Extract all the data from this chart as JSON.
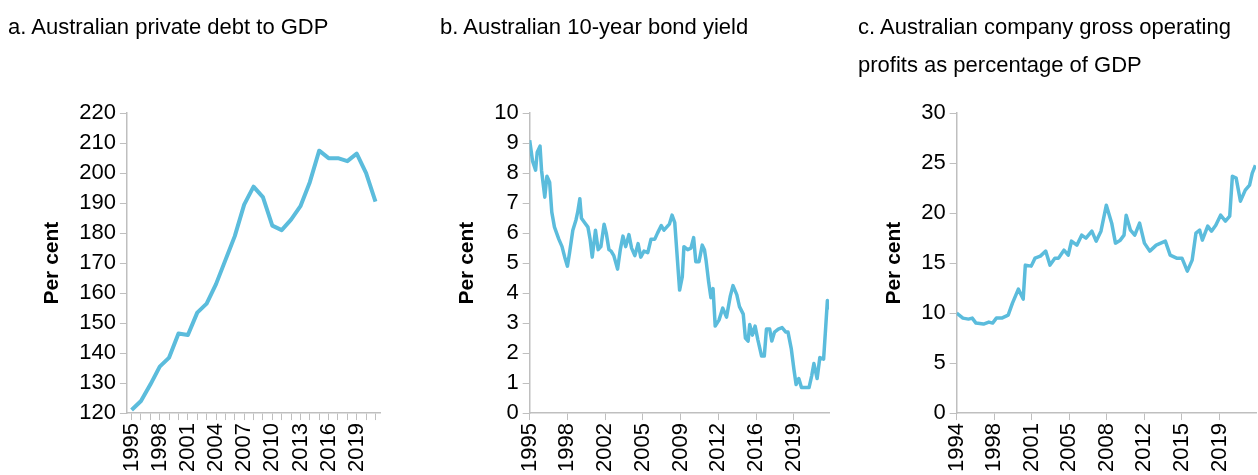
{
  "chart_data": [
    {
      "type": "line",
      "title": "a. Australian private debt to GDP",
      "ylabel": "Per cent",
      "categories": [
        "1995",
        null,
        null,
        "1998",
        null,
        null,
        "2001",
        null,
        null,
        "2004",
        null,
        null,
        "2007",
        null,
        null,
        "2010",
        null,
        null,
        "2013",
        null,
        null,
        "2016",
        null,
        null,
        "2019",
        null,
        null
      ],
      "series": [
        {
          "color": "#5bbcdc",
          "values": [
            121,
            124,
            129.5,
            135.5,
            138.5,
            146.5,
            146,
            153.5,
            156.5,
            163,
            171,
            179,
            189.5,
            195.5,
            192,
            182.5,
            181,
            184.5,
            189,
            197,
            207.5,
            205,
            205,
            204,
            206.5,
            200,
            190.5
          ]
        }
      ],
      "ylim": [
        120,
        220
      ],
      "yticks": [
        120,
        130,
        140,
        150,
        160,
        170,
        180,
        190,
        200,
        210,
        220
      ]
    },
    {
      "type": "line",
      "title": "b. Australian 10-year bond yield",
      "ylabel": "Per cent",
      "x": [
        1995.0,
        1995.27,
        1995.55,
        1995.7,
        1995.96,
        1996.1,
        1996.4,
        1996.6,
        1996.85,
        1997.05,
        1997.3,
        1997.7,
        1998.0,
        1998.25,
        1998.5,
        1998.7,
        1999.0,
        1999.3,
        1999.45,
        1999.65,
        1999.8,
        2000.1,
        2000.4,
        2000.6,
        2000.8,
        2001.1,
        2001.35,
        2001.6,
        2001.9,
        2002.1,
        2002.35,
        2002.55,
        2002.8,
        2003.15,
        2003.4,
        2003.65,
        2003.9,
        2004.2,
        2004.45,
        2004.75,
        2005.05,
        2005.3,
        2005.6,
        2005.95,
        2006.25,
        2006.6,
        2006.85,
        2007.2,
        2007.45,
        2007.95,
        2008.2,
        2008.45,
        2008.7,
        2008.9,
        2009.15,
        2009.3,
        2009.65,
        2009.95,
        2010.2,
        2010.4,
        2010.7,
        2011.0,
        2011.2,
        2011.35,
        2011.6,
        2011.8,
        2012.0,
        2012.2,
        2012.55,
        2012.9,
        2013.25,
        2013.6,
        2013.85,
        2014.2,
        2014.45,
        2014.8,
        2015.0,
        2015.25,
        2015.4,
        2015.65,
        2015.9,
        2016.15,
        2016.5,
        2016.75,
        2016.95,
        2017.25,
        2017.45,
        2017.7,
        2018.05,
        2018.4,
        2018.75,
        2018.95,
        2019.25,
        2019.5,
        2019.7,
        2019.95,
        2020.2,
        2020.55,
        2020.9,
        2021.15,
        2021.35,
        2021.65,
        2021.9,
        2022.25,
        2022.45,
        2022.6,
        2022.75
      ],
      "series": [
        {
          "color": "#5bbcdc",
          "values": [
            9.1,
            8.4,
            8.1,
            8.7,
            8.9,
            8.1,
            7.2,
            7.9,
            7.7,
            6.7,
            6.2,
            5.8,
            5.55,
            5.2,
            4.9,
            5.35,
            6.1,
            6.45,
            6.7,
            7.15,
            6.5,
            6.35,
            6.2,
            5.8,
            5.2,
            6.1,
            5.45,
            5.55,
            6.3,
            6.0,
            5.45,
            5.4,
            5.25,
            4.8,
            5.45,
            5.9,
            5.55,
            5.95,
            5.5,
            5.25,
            5.65,
            5.2,
            5.4,
            5.35,
            5.8,
            5.8,
            6.0,
            6.25,
            6.1,
            6.3,
            6.6,
            6.35,
            5.1,
            4.1,
            4.55,
            5.55,
            5.45,
            5.5,
            5.85,
            5.05,
            5.05,
            5.6,
            5.45,
            5.1,
            4.35,
            3.85,
            4.15,
            2.9,
            3.1,
            3.5,
            3.2,
            3.9,
            4.25,
            3.95,
            3.55,
            3.3,
            2.5,
            2.4,
            2.95,
            2.6,
            2.9,
            2.45,
            1.9,
            1.9,
            2.8,
            2.8,
            2.4,
            2.7,
            2.8,
            2.85,
            2.7,
            2.7,
            2.15,
            1.45,
            0.95,
            1.15,
            0.85,
            0.85,
            0.85,
            1.25,
            1.65,
            1.15,
            1.85,
            1.8,
            2.9,
            3.75,
            3.45
          ]
        }
      ],
      "xlim": [
        1995,
        2022.75
      ],
      "xticks": [
        1995,
        {
          "value": 1998.5,
          "label": "1998"
        },
        2002,
        {
          "value": 2005.5,
          "label": "2005"
        },
        2009,
        {
          "value": 2012.5,
          "label": "2012"
        },
        2016,
        {
          "value": 2019.5,
          "label": "2019"
        }
      ],
      "ylim": [
        0,
        10
      ],
      "yticks": [
        0,
        1,
        2,
        3,
        4,
        5,
        6,
        7,
        8,
        9,
        10
      ]
    },
    {
      "type": "line",
      "title": "c. Australian company gross operating profits as percentage of GDP",
      "ylabel": "Per cent",
      "x": [
        1994.5,
        1995.08,
        1995.6,
        1995.95,
        1996.3,
        1997.0,
        1997.5,
        1997.85,
        1998.2,
        1998.7,
        1999.3,
        1999.7,
        2000.25,
        2000.7,
        2000.9,
        2001.45,
        2001.8,
        2002.3,
        2002.8,
        2003.2,
        2003.65,
        2004.0,
        2004.5,
        2004.9,
        2005.2,
        2005.7,
        2006.15,
        2006.55,
        2007.1,
        2007.5,
        2007.95,
        2008.45,
        2008.95,
        2009.3,
        2009.75,
        2010.1,
        2010.3,
        2010.7,
        2011.1,
        2011.55,
        2012.0,
        2012.5,
        2013.1,
        2013.95,
        2014.4,
        2015.0,
        2015.5,
        2016.0,
        2016.45,
        2016.8,
        2017.15,
        2017.4,
        2017.9,
        2018.25,
        2018.65,
        2019.1,
        2019.55,
        2019.95,
        2020.2,
        2020.55,
        2020.95,
        2021.4,
        2021.8,
        2022.05,
        2022.35
      ],
      "series": [
        {
          "color": "#5bbcdc",
          "values": [
            10.0,
            9.5,
            9.4,
            9.5,
            9.0,
            8.9,
            9.1,
            9.0,
            9.5,
            9.5,
            9.8,
            11.0,
            12.4,
            11.4,
            14.8,
            14.7,
            15.5,
            15.7,
            16.2,
            14.8,
            15.5,
            15.5,
            16.3,
            15.8,
            17.2,
            16.8,
            17.8,
            17.5,
            18.2,
            17.2,
            18.2,
            20.8,
            19.0,
            17.0,
            17.3,
            17.8,
            19.8,
            18.3,
            17.8,
            19.0,
            17.0,
            16.2,
            16.8,
            17.2,
            15.8,
            15.5,
            15.5,
            14.2,
            15.3,
            18.0,
            18.3,
            17.3,
            18.7,
            18.2,
            18.8,
            19.8,
            19.2,
            19.7,
            23.7,
            23.5,
            21.2,
            22.3,
            22.8,
            24.0,
            24.8
          ]
        }
      ],
      "xlim": [
        1994.5,
        2022.4
      ],
      "xticks": [
        {
          "value": 1994.5,
          "label": "1994"
        },
        1998,
        {
          "value": 2001.5,
          "label": "2001"
        },
        2005,
        {
          "value": 2008.5,
          "label": "2008"
        },
        2012,
        {
          "value": 2015.5,
          "label": "2015"
        },
        2019
      ],
      "ylim": [
        0,
        30
      ],
      "yticks": [
        0,
        5,
        10,
        15,
        20,
        25,
        30
      ]
    }
  ]
}
